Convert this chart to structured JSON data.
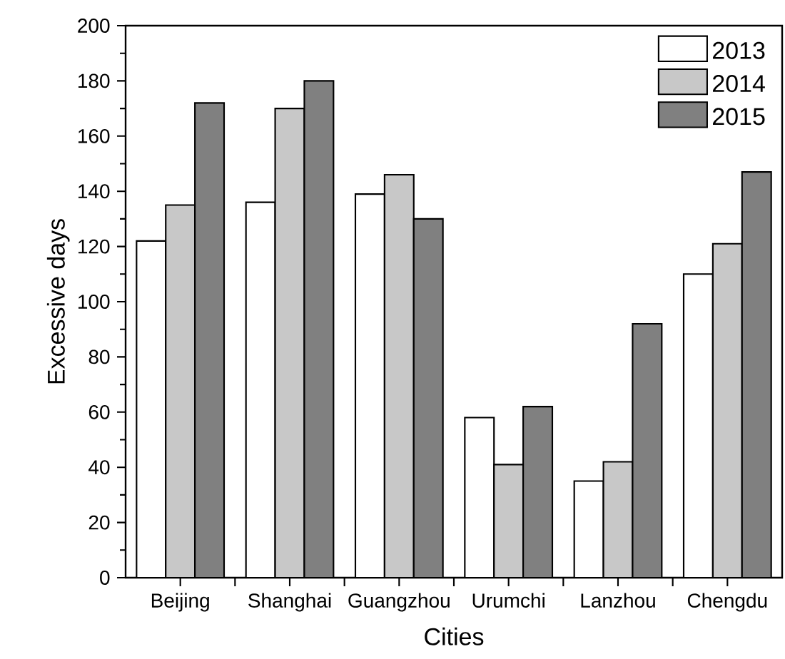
{
  "chart_data": {
    "type": "bar",
    "xlabel": "Cities",
    "ylabel": "Excessive days",
    "categories": [
      "Beijing",
      "Shanghai",
      "Guangzhou",
      "Urumchi",
      "Lanzhou",
      "Chengdu"
    ],
    "series": [
      {
        "name": "2013",
        "color": "#ffffff",
        "values": [
          122,
          136,
          139,
          58,
          35,
          110
        ]
      },
      {
        "name": "2014",
        "color": "#c8c8c8",
        "values": [
          135,
          170,
          146,
          41,
          42,
          121
        ]
      },
      {
        "name": "2015",
        "color": "#808080",
        "values": [
          172,
          180,
          130,
          62,
          92,
          147
        ]
      }
    ],
    "ylim": [
      0,
      200
    ],
    "yticks": [
      0,
      20,
      40,
      60,
      80,
      100,
      120,
      140,
      160,
      180,
      200
    ],
    "legend": "top right",
    "grid": false
  }
}
